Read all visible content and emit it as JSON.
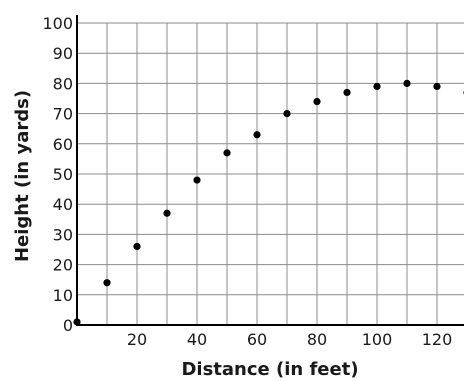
{
  "chart_data": {
    "type": "scatter",
    "title": "",
    "xlabel": "Distance (in feet)",
    "ylabel": "Height (in yards)",
    "xlim": [
      0,
      130
    ],
    "ylim": [
      0,
      100
    ],
    "x_grid_step": 10,
    "y_grid_step": 10,
    "grid": true,
    "x_tick_labels": [
      "20",
      "40",
      "60",
      "80",
      "100",
      "120"
    ],
    "y_tick_labels": [
      "0",
      "10",
      "20",
      "30",
      "40",
      "50",
      "60",
      "70",
      "80",
      "90",
      "100"
    ],
    "points": [
      {
        "x": 0,
        "y": 1
      },
      {
        "x": 10,
        "y": 14
      },
      {
        "x": 20,
        "y": 26
      },
      {
        "x": 30,
        "y": 37
      },
      {
        "x": 40,
        "y": 48
      },
      {
        "x": 50,
        "y": 57
      },
      {
        "x": 60,
        "y": 63
      },
      {
        "x": 70,
        "y": 70
      },
      {
        "x": 80,
        "y": 74
      },
      {
        "x": 90,
        "y": 77
      },
      {
        "x": 100,
        "y": 79
      },
      {
        "x": 110,
        "y": 80
      },
      {
        "x": 120,
        "y": 79
      },
      {
        "x": 130,
        "y": 77
      }
    ]
  }
}
